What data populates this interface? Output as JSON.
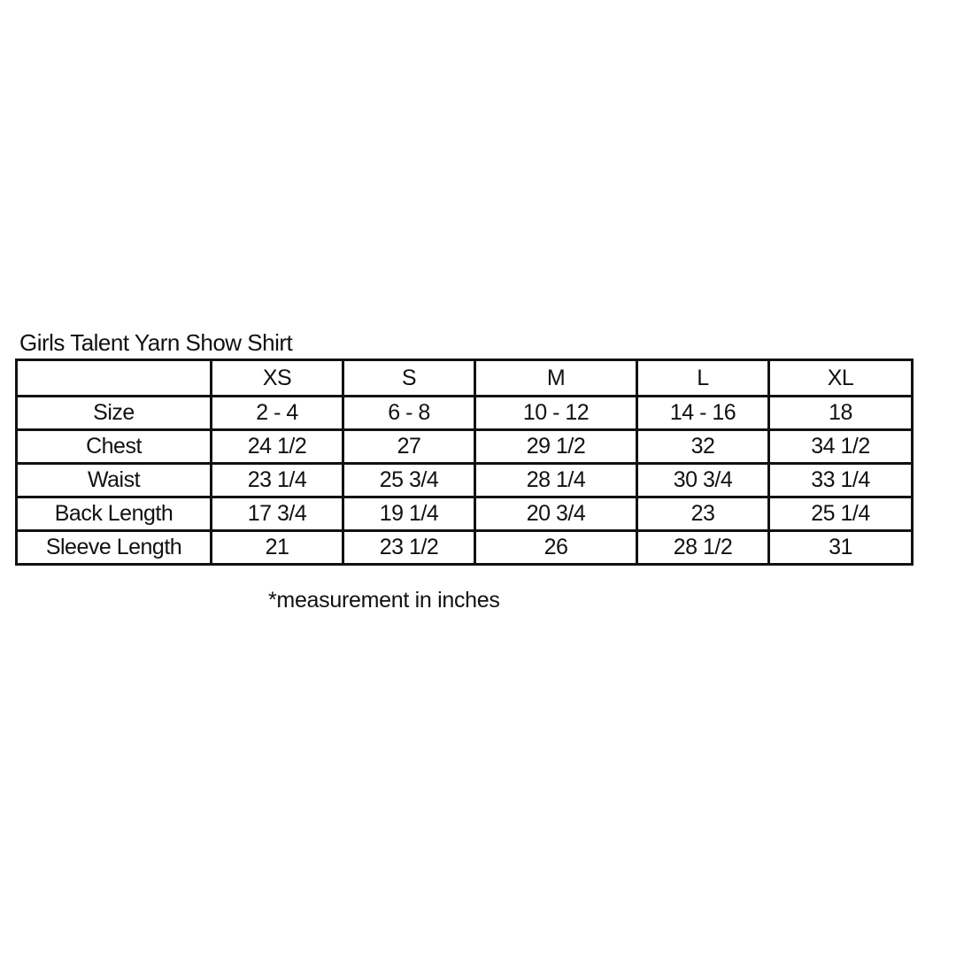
{
  "title": "Girls Talent Yarn Show Shirt",
  "columns": [
    "",
    "XS",
    "S",
    "M",
    "L",
    "XL"
  ],
  "rows": [
    {
      "label": "Size",
      "values": [
        "2 - 4",
        "6 - 8",
        "10 - 12",
        "14 - 16",
        "18"
      ]
    },
    {
      "label": "Chest",
      "values": [
        "24 1/2",
        "27",
        "29 1/2",
        "32",
        "34 1/2"
      ]
    },
    {
      "label": "Waist",
      "values": [
        "23 1/4",
        "25 3/4",
        "28 1/4",
        "30 3/4",
        "33 1/4"
      ]
    },
    {
      "label": "Back Length",
      "values": [
        "17 3/4",
        "19 1/4",
        "20 3/4",
        "23",
        "25 1/4"
      ]
    },
    {
      "label": "Sleeve Length",
      "values": [
        "21",
        "23 1/2",
        "26",
        "28 1/2",
        "31"
      ]
    }
  ],
  "note": "*measurement in inches"
}
